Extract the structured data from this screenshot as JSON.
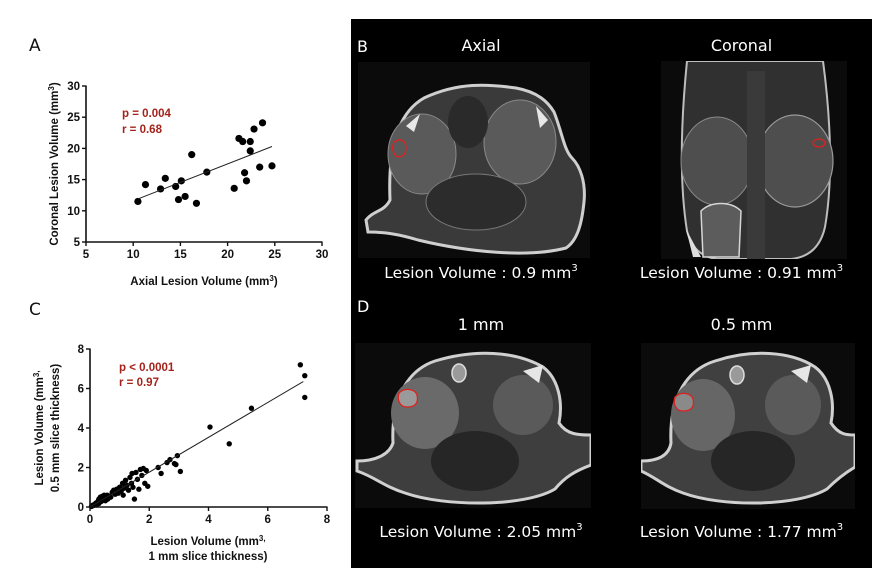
{
  "panels": {
    "a_label": "A",
    "b_label": "B",
    "c_label": "C",
    "d_label": "D"
  },
  "chart_data": [
    {
      "id": "A",
      "type": "scatter",
      "title": "",
      "xlabel": "Axial Lesion Volume (mm",
      "xlabel_sup": "3",
      "xlabel_end": ")",
      "ylabel": "Coronal Lesion Volume (mm",
      "ylabel_sup": "3",
      "ylabel_end": ")",
      "xlim": [
        5,
        30
      ],
      "ylim": [
        5,
        30
      ],
      "xticks": [
        5,
        10,
        15,
        20,
        25,
        30
      ],
      "yticks": [
        5,
        10,
        15,
        20,
        25,
        30
      ],
      "grid": false,
      "annotations": [
        "p = 0.004",
        "r = 0.68"
      ],
      "annotation_color": "#a3231b",
      "points": [
        [
          10.5,
          11.5
        ],
        [
          11.3,
          14.2
        ],
        [
          12.9,
          13.5
        ],
        [
          13.4,
          15.2
        ],
        [
          14.5,
          13.9
        ],
        [
          14.8,
          11.8
        ],
        [
          15.1,
          14.8
        ],
        [
          15.5,
          12.3
        ],
        [
          16.2,
          19.0
        ],
        [
          16.7,
          11.2
        ],
        [
          17.8,
          16.2
        ],
        [
          20.7,
          13.6
        ],
        [
          21.2,
          21.6
        ],
        [
          21.6,
          21.1
        ],
        [
          21.8,
          16.1
        ],
        [
          22.0,
          14.8
        ],
        [
          22.4,
          21.1
        ],
        [
          22.4,
          19.6
        ],
        [
          22.8,
          23.1
        ],
        [
          23.4,
          17.0
        ],
        [
          23.7,
          24.1
        ],
        [
          24.7,
          17.2
        ]
      ],
      "regression": {
        "x": [
          10.5,
          24.7
        ],
        "y": [
          11.9,
          20.3
        ]
      }
    },
    {
      "id": "C",
      "type": "scatter",
      "title": "",
      "xlabel": "Lesion Volume (mm",
      "xlabel_sup": "3,",
      "xlabel_line2": "1 mm slice thickness)",
      "ylabel": "Lesion Volume (mm",
      "ylabel_sup": "3,",
      "ylabel_line2": "0.5 mm slice thickness)",
      "xlim": [
        0,
        8
      ],
      "ylim": [
        0,
        8
      ],
      "xticks": [
        0,
        2,
        4,
        6,
        8
      ],
      "yticks": [
        0,
        2,
        4,
        6,
        8
      ],
      "grid": false,
      "annotations": [
        "p < 0.0001",
        "r = 0.97"
      ],
      "annotation_color": "#a3231b",
      "points": [
        [
          0.05,
          0.03
        ],
        [
          0.08,
          0.06
        ],
        [
          0.1,
          0.1
        ],
        [
          0.12,
          0.08
        ],
        [
          0.15,
          0.12
        ],
        [
          0.18,
          0.15
        ],
        [
          0.2,
          0.2
        ],
        [
          0.22,
          0.1
        ],
        [
          0.25,
          0.25
        ],
        [
          0.28,
          0.3
        ],
        [
          0.3,
          0.18
        ],
        [
          0.3,
          0.4
        ],
        [
          0.33,
          0.35
        ],
        [
          0.35,
          0.5
        ],
        [
          0.38,
          0.28
        ],
        [
          0.4,
          0.45
        ],
        [
          0.42,
          0.55
        ],
        [
          0.45,
          0.38
        ],
        [
          0.48,
          0.6
        ],
        [
          0.5,
          0.5
        ],
        [
          0.52,
          0.32
        ],
        [
          0.55,
          0.45
        ],
        [
          0.58,
          0.6
        ],
        [
          0.6,
          0.4
        ],
        [
          0.65,
          0.55
        ],
        [
          0.7,
          0.5
        ],
        [
          0.75,
          0.75
        ],
        [
          0.8,
          0.85
        ],
        [
          0.85,
          0.65
        ],
        [
          0.9,
          0.9
        ],
        [
          0.95,
          0.7
        ],
        [
          1.0,
          1.0
        ],
        [
          1.05,
          0.8
        ],
        [
          1.1,
          1.2
        ],
        [
          1.12,
          0.6
        ],
        [
          1.15,
          0.95
        ],
        [
          1.2,
          1.35
        ],
        [
          1.25,
          1.1
        ],
        [
          1.3,
          0.85
        ],
        [
          1.35,
          1.5
        ],
        [
          1.4,
          1.2
        ],
        [
          1.42,
          1.7
        ],
        [
          1.45,
          1.0
        ],
        [
          1.5,
          0.4
        ],
        [
          1.55,
          1.75
        ],
        [
          1.6,
          1.4
        ],
        [
          1.65,
          0.9
        ],
        [
          1.7,
          1.9
        ],
        [
          1.75,
          1.6
        ],
        [
          1.8,
          1.95
        ],
        [
          1.85,
          1.2
        ],
        [
          1.9,
          1.85
        ],
        [
          1.95,
          1.05
        ],
        [
          2.3,
          2.0
        ],
        [
          2.4,
          1.7
        ],
        [
          2.6,
          2.25
        ],
        [
          2.7,
          2.4
        ],
        [
          2.85,
          2.2
        ],
        [
          2.95,
          2.6
        ],
        [
          2.9,
          2.15
        ],
        [
          3.05,
          1.8
        ],
        [
          4.05,
          4.05
        ],
        [
          4.7,
          3.2
        ],
        [
          5.45,
          5.0
        ],
        [
          7.1,
          7.2
        ],
        [
          7.25,
          6.65
        ],
        [
          7.25,
          5.55
        ]
      ],
      "regression": {
        "x": [
          0.0,
          7.2
        ],
        "y": [
          0.0,
          6.35
        ]
      }
    }
  ],
  "mri": {
    "axial": {
      "title": "Axial",
      "caption": "Lesion Volume : 0.9 mm",
      "caption_sup": "3"
    },
    "coronal": {
      "title": "Coronal",
      "caption": "Lesion Volume : 0.91 mm",
      "caption_sup": "3"
    },
    "one_mm": {
      "title": "1 mm",
      "caption": "Lesion Volume : 2.05 mm",
      "caption_sup": "3"
    },
    "half_mm": {
      "title": "0.5 mm",
      "caption": "Lesion Volume : 1.77 mm",
      "caption_sup": "3"
    },
    "roi_color": "#e0201c"
  }
}
